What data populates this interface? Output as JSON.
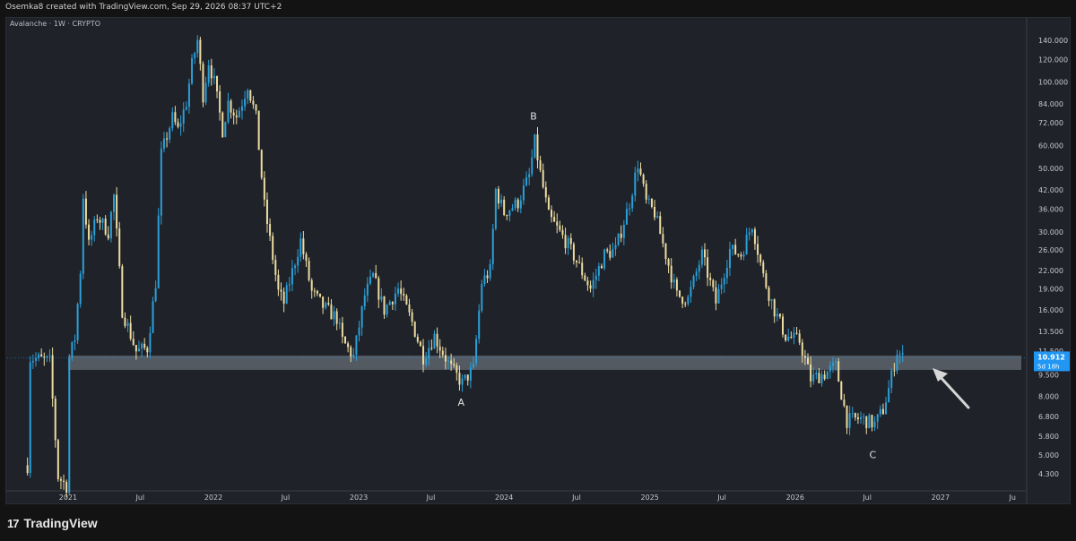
{
  "header": {
    "attribution": "Osemka8 created with TradingView.com, Sep 29, 2026 08:37 UTC+2"
  },
  "symbol_legend": "Avalanche · 1W · CRYPTO",
  "footer": {
    "logo_text": "TradingView",
    "logo_mark": "17"
  },
  "colors": {
    "background": "#202229",
    "up": "#2a9fd8",
    "down": "#eddca0",
    "zone": "#c3d0de",
    "price_tag": "#2196f3",
    "annotation": "#e0e0e0"
  },
  "chart_data": {
    "type": "candlestick",
    "title": "",
    "xlabel": "",
    "ylabel": "",
    "y_scale": "log",
    "ylim": [
      3.8,
      165
    ],
    "x_ticks": [
      "2021",
      "Jul",
      "2022",
      "Jul",
      "2023",
      "Jul",
      "2024",
      "Jul",
      "2025",
      "Jul",
      "2026",
      "Jul",
      "2027",
      "Ju"
    ],
    "y_ticks": [
      "140.000",
      "120.000",
      "100.000",
      "84.000",
      "72.000",
      "60.000",
      "50.000",
      "42.000",
      "36.000",
      "30.000",
      "26.000",
      "22.000",
      "19.000",
      "16.000",
      "13.500",
      "11.500",
      "9.500",
      "8.000",
      "6.800",
      "5.800",
      "5.000",
      "4.300"
    ],
    "y_tick_values": [
      140,
      120,
      100,
      84,
      72,
      60,
      50,
      42,
      36,
      30,
      26,
      22,
      19,
      16,
      13.5,
      11.5,
      9.5,
      8.0,
      6.8,
      5.8,
      5.0,
      4.3
    ],
    "last_price": {
      "value": "10.912",
      "countdown": "5d 18h"
    },
    "support_zone": [
      9.9,
      11.1
    ],
    "annotations": [
      {
        "label": "A",
        "date": "2023-09",
        "price": 8.7
      },
      {
        "label": "B",
        "date": "2024-03",
        "price": 65
      },
      {
        "label": "C",
        "date": "2026-07",
        "price": 5.7
      }
    ],
    "price_path": [
      [
        "2020-09-21",
        4.6
      ],
      [
        "2020-09-28",
        10.9
      ],
      [
        "2020-10-19",
        10.8
      ],
      [
        "2020-11-16",
        10.6
      ],
      [
        "2020-12-07",
        4.2
      ],
      [
        "2020-12-28",
        3.9
      ],
      [
        "2021-01-04",
        10.9
      ],
      [
        "2021-01-18",
        12.8
      ],
      [
        "2021-02-01",
        22.0
      ],
      [
        "2021-02-08",
        40.0
      ],
      [
        "2021-02-22",
        27.0
      ],
      [
        "2021-03-15",
        34.0
      ],
      [
        "2021-04-12",
        30.0
      ],
      [
        "2021-04-26",
        40.0
      ],
      [
        "2021-05-17",
        16.0
      ],
      [
        "2021-06-21",
        11.5
      ],
      [
        "2021-07-19",
        11.8
      ],
      [
        "2021-08-09",
        20.0
      ],
      [
        "2021-08-23",
        56.0
      ],
      [
        "2021-09-06",
        65.0
      ],
      [
        "2021-09-20",
        75.0
      ],
      [
        "2021-10-04",
        68.0
      ],
      [
        "2021-10-25",
        85.0
      ],
      [
        "2021-11-08",
        115.0
      ],
      [
        "2021-11-22",
        140.0
      ],
      [
        "2021-12-06",
        90.0
      ],
      [
        "2021-12-20",
        118.0
      ],
      [
        "2022-01-03",
        100.0
      ],
      [
        "2022-01-24",
        68.0
      ],
      [
        "2022-02-07",
        85.0
      ],
      [
        "2022-02-28",
        76.0
      ],
      [
        "2022-03-14",
        85.0
      ],
      [
        "2022-03-28",
        98.0
      ],
      [
        "2022-04-18",
        75.0
      ],
      [
        "2022-05-09",
        37.0
      ],
      [
        "2022-06-13",
        18.5
      ],
      [
        "2022-06-27",
        17.0
      ],
      [
        "2022-08-08",
        28.0
      ],
      [
        "2022-09-05",
        18.5
      ],
      [
        "2022-10-03",
        16.5
      ],
      [
        "2022-11-07",
        15.0
      ],
      [
        "2022-11-21",
        12.5
      ],
      [
        "2022-12-19",
        11.0
      ],
      [
        "2023-01-16",
        18.0
      ],
      [
        "2023-02-06",
        21.0
      ],
      [
        "2023-03-06",
        16.0
      ],
      [
        "2023-04-10",
        19.0
      ],
      [
        "2023-05-15",
        14.5
      ],
      [
        "2023-06-12",
        11.0
      ],
      [
        "2023-07-10",
        13.0
      ],
      [
        "2023-08-21",
        10.0
      ],
      [
        "2023-09-18",
        8.9
      ],
      [
        "2023-10-16",
        10.0
      ],
      [
        "2023-11-06",
        20.0
      ],
      [
        "2023-11-27",
        22.0
      ],
      [
        "2023-12-11",
        42.0
      ],
      [
        "2024-01-01",
        35.0
      ],
      [
        "2024-02-05",
        38.0
      ],
      [
        "2024-03-04",
        47.0
      ],
      [
        "2024-03-18",
        62.0
      ],
      [
        "2024-04-01",
        48.0
      ],
      [
        "2024-04-22",
        34.0
      ],
      [
        "2024-06-10",
        27.0
      ],
      [
        "2024-08-05",
        19.0
      ],
      [
        "2024-09-09",
        25.0
      ],
      [
        "2024-10-07",
        26.0
      ],
      [
        "2024-11-11",
        38.0
      ],
      [
        "2024-12-02",
        52.0
      ],
      [
        "2024-12-23",
        38.0
      ],
      [
        "2025-01-13",
        35.0
      ],
      [
        "2025-02-10",
        25.0
      ],
      [
        "2025-03-10",
        18.0
      ],
      [
        "2025-04-07",
        17.5
      ],
      [
        "2025-05-12",
        25.0
      ],
      [
        "2025-06-16",
        17.0
      ],
      [
        "2025-07-21",
        26.0
      ],
      [
        "2025-08-18",
        25.0
      ],
      [
        "2025-09-15",
        32.0
      ],
      [
        "2025-10-13",
        21.0
      ],
      [
        "2025-11-10",
        16.0
      ],
      [
        "2025-12-08",
        13.0
      ],
      [
        "2026-01-12",
        12.5
      ],
      [
        "2026-02-09",
        9.2
      ],
      [
        "2026-03-16",
        9.6
      ],
      [
        "2026-04-13",
        10.2
      ],
      [
        "2026-05-11",
        6.6
      ],
      [
        "2026-06-15",
        6.7
      ],
      [
        "2026-07-20",
        6.4
      ],
      [
        "2026-08-10",
        7.2
      ],
      [
        "2026-08-24",
        8.5
      ],
      [
        "2026-09-14",
        11.5
      ],
      [
        "2026-09-28",
        10.912
      ]
    ]
  }
}
